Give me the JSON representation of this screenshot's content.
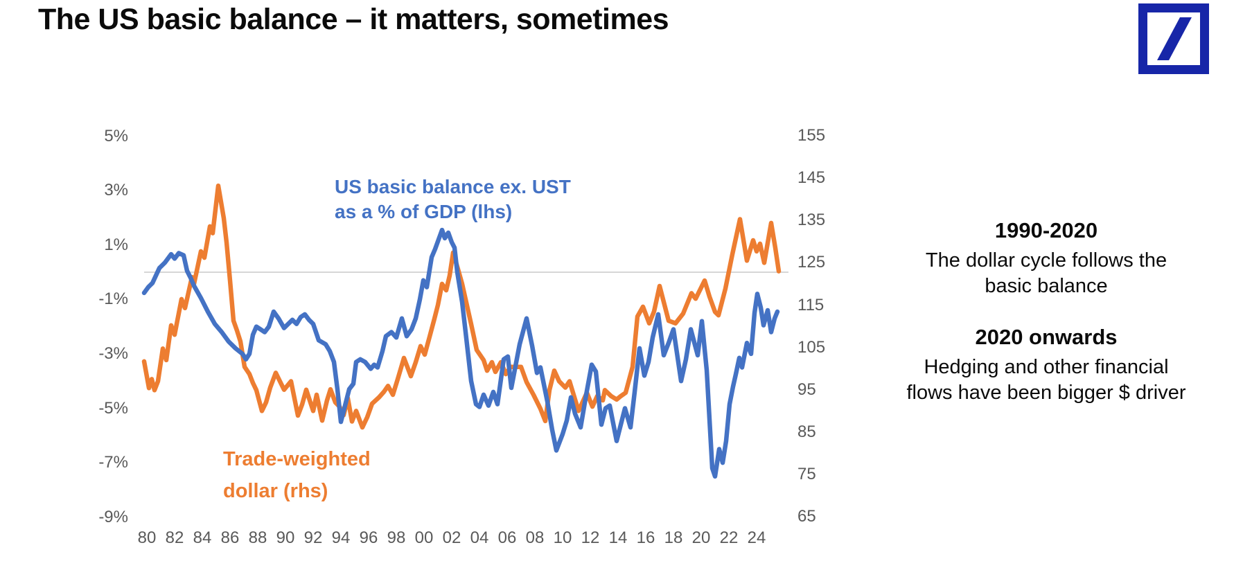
{
  "page": {
    "title": "The US basic balance – it matters, sometimes"
  },
  "logo": {
    "name": "Deutsche Bank",
    "color": "#1726A8"
  },
  "chart": {
    "blue_label_line1": "US basic balance ex. UST",
    "blue_label_line2": "as a % of GDP (lhs)",
    "orange_label_line1": "Trade-weighted",
    "orange_label_line2": "dollar (rhs)",
    "colors": {
      "blue": "#4472C4",
      "orange": "#ED7D31",
      "gridline": "#C9C9C9",
      "axis_text": "#595959"
    }
  },
  "annotations": {
    "block1": {
      "heading": "1990-2020",
      "body": "The dollar cycle follows the\nbasic balance"
    },
    "block2": {
      "heading": "2020 onwards",
      "body": "Hedging and other financial\nflows have been bigger $ driver"
    }
  },
  "chart_data": {
    "type": "line",
    "title": "The US basic balance – it matters, sometimes",
    "grid": "zero line only (left axis 0%)",
    "legend_position": "labels on chart",
    "x_axis": {
      "range": [
        1979.8,
        2025.6
      ],
      "tick_years": [
        1980,
        1982,
        1984,
        1986,
        1988,
        1990,
        1992,
        1994,
        1996,
        1998,
        2000,
        2002,
        2004,
        2006,
        2008,
        2010,
        2012,
        2014,
        2016,
        2018,
        2020,
        2022,
        2024
      ],
      "tick_label_format": "2-digit"
    },
    "left_axis": {
      "label": "US basic balance ex. UST as a % of GDP",
      "range": [
        -9,
        5
      ],
      "ticks": [
        5,
        3,
        1,
        -1,
        -3,
        -5,
        -7,
        -9
      ],
      "format": "percent"
    },
    "right_axis": {
      "label": "Trade-weighted dollar index",
      "range": [
        65,
        155
      ],
      "ticks": [
        155,
        145,
        135,
        125,
        115,
        105,
        95,
        85,
        75,
        65
      ]
    },
    "series": [
      {
        "name": "US basic balance ex. UST as a % of GDP (lhs)",
        "axis": "left",
        "color": "#4472C4",
        "points": [
          [
            1979.8,
            -0.76
          ],
          [
            1980.1,
            -0.55
          ],
          [
            1980.4,
            -0.4
          ],
          [
            1980.9,
            0.15
          ],
          [
            1981.3,
            0.35
          ],
          [
            1981.75,
            0.66
          ],
          [
            1982.0,
            0.5
          ],
          [
            1982.3,
            0.7
          ],
          [
            1982.65,
            0.62
          ],
          [
            1982.9,
            0.05
          ],
          [
            1983.15,
            -0.2
          ],
          [
            1983.4,
            -0.5
          ],
          [
            1983.9,
            -0.95
          ],
          [
            1984.4,
            -1.45
          ],
          [
            1984.9,
            -1.9
          ],
          [
            1985.4,
            -2.2
          ],
          [
            1985.9,
            -2.55
          ],
          [
            1986.4,
            -2.8
          ],
          [
            1986.9,
            -3.0
          ],
          [
            1987.15,
            -3.2
          ],
          [
            1987.4,
            -3.0
          ],
          [
            1987.65,
            -2.3
          ],
          [
            1987.9,
            -2.0
          ],
          [
            1988.2,
            -2.1
          ],
          [
            1988.5,
            -2.2
          ],
          [
            1988.8,
            -2.0
          ],
          [
            1989.15,
            -1.45
          ],
          [
            1989.5,
            -1.7
          ],
          [
            1989.9,
            -2.05
          ],
          [
            1990.2,
            -1.9
          ],
          [
            1990.5,
            -1.75
          ],
          [
            1990.8,
            -1.9
          ],
          [
            1991.1,
            -1.65
          ],
          [
            1991.4,
            -1.55
          ],
          [
            1991.7,
            -1.75
          ],
          [
            1992.0,
            -1.9
          ],
          [
            1992.4,
            -2.5
          ],
          [
            1992.9,
            -2.65
          ],
          [
            1993.2,
            -2.9
          ],
          [
            1993.5,
            -3.3
          ],
          [
            1993.75,
            -4.3
          ],
          [
            1994.0,
            -5.5
          ],
          [
            1994.3,
            -4.9
          ],
          [
            1994.6,
            -4.3
          ],
          [
            1994.9,
            -4.1
          ],
          [
            1995.1,
            -3.3
          ],
          [
            1995.4,
            -3.2
          ],
          [
            1995.75,
            -3.3
          ],
          [
            1996.15,
            -3.55
          ],
          [
            1996.4,
            -3.4
          ],
          [
            1996.65,
            -3.5
          ],
          [
            1997.0,
            -2.9
          ],
          [
            1997.25,
            -2.35
          ],
          [
            1997.65,
            -2.2
          ],
          [
            1998.0,
            -2.4
          ],
          [
            1998.4,
            -1.7
          ],
          [
            1998.75,
            -2.35
          ],
          [
            1999.1,
            -2.1
          ],
          [
            1999.4,
            -1.7
          ],
          [
            1999.7,
            -1.0
          ],
          [
            1999.95,
            -0.3
          ],
          [
            2000.2,
            -0.55
          ],
          [
            2000.55,
            0.55
          ],
          [
            2000.8,
            0.85
          ],
          [
            2001.05,
            1.2
          ],
          [
            2001.3,
            1.55
          ],
          [
            2001.5,
            1.25
          ],
          [
            2001.75,
            1.45
          ],
          [
            2002.0,
            1.1
          ],
          [
            2002.2,
            0.9
          ],
          [
            2002.4,
            0.0
          ],
          [
            2002.75,
            -1.1
          ],
          [
            2003.0,
            -2.2
          ],
          [
            2003.4,
            -4.0
          ],
          [
            2003.75,
            -4.85
          ],
          [
            2004.0,
            -4.95
          ],
          [
            2004.3,
            -4.5
          ],
          [
            2004.65,
            -4.9
          ],
          [
            2005.0,
            -4.4
          ],
          [
            2005.3,
            -4.85
          ],
          [
            2005.75,
            -3.2
          ],
          [
            2006.05,
            -3.1
          ],
          [
            2006.3,
            -4.25
          ],
          [
            2006.9,
            -2.65
          ],
          [
            2007.4,
            -1.7
          ],
          [
            2007.8,
            -2.7
          ],
          [
            2008.15,
            -3.7
          ],
          [
            2008.4,
            -3.5
          ],
          [
            2008.9,
            -4.75
          ],
          [
            2009.25,
            -5.8
          ],
          [
            2009.55,
            -6.55
          ],
          [
            2010.0,
            -5.95
          ],
          [
            2010.3,
            -5.45
          ],
          [
            2010.6,
            -4.6
          ],
          [
            2010.9,
            -5.2
          ],
          [
            2011.3,
            -5.7
          ],
          [
            2011.7,
            -4.5
          ],
          [
            2012.1,
            -3.4
          ],
          [
            2012.4,
            -3.65
          ],
          [
            2012.8,
            -5.6
          ],
          [
            2013.1,
            -5.0
          ],
          [
            2013.4,
            -4.9
          ],
          [
            2013.9,
            -6.2
          ],
          [
            2014.2,
            -5.6
          ],
          [
            2014.5,
            -5.0
          ],
          [
            2014.9,
            -5.7
          ],
          [
            2015.2,
            -4.4
          ],
          [
            2015.55,
            -2.8
          ],
          [
            2015.9,
            -3.8
          ],
          [
            2016.2,
            -3.3
          ],
          [
            2016.5,
            -2.4
          ],
          [
            2016.9,
            -1.55
          ],
          [
            2017.3,
            -3.05
          ],
          [
            2017.65,
            -2.6
          ],
          [
            2018.0,
            -2.1
          ],
          [
            2018.55,
            -4.0
          ],
          [
            2018.9,
            -3.2
          ],
          [
            2019.25,
            -2.1
          ],
          [
            2019.75,
            -3.05
          ],
          [
            2020.05,
            -1.8
          ],
          [
            2020.4,
            -3.6
          ],
          [
            2020.8,
            -7.2
          ],
          [
            2021.0,
            -7.5
          ],
          [
            2021.3,
            -6.5
          ],
          [
            2021.55,
            -7.0
          ],
          [
            2021.8,
            -6.2
          ],
          [
            2022.05,
            -4.85
          ],
          [
            2022.3,
            -4.2
          ],
          [
            2022.5,
            -3.75
          ],
          [
            2022.75,
            -3.15
          ],
          [
            2022.95,
            -3.5
          ],
          [
            2023.3,
            -2.6
          ],
          [
            2023.6,
            -3.0
          ],
          [
            2023.85,
            -1.5
          ],
          [
            2024.05,
            -0.8
          ],
          [
            2024.3,
            -1.3
          ],
          [
            2024.5,
            -1.95
          ],
          [
            2024.8,
            -1.4
          ],
          [
            2025.05,
            -2.2
          ],
          [
            2025.3,
            -1.7
          ],
          [
            2025.5,
            -1.45
          ]
        ]
      },
      {
        "name": "Trade-weighted dollar (rhs)",
        "axis": "right",
        "color": "#ED7D31",
        "points": [
          [
            1979.8,
            101.7
          ],
          [
            1980.15,
            95.4
          ],
          [
            1980.35,
            97.5
          ],
          [
            1980.55,
            94.9
          ],
          [
            1980.8,
            97.0
          ],
          [
            1981.15,
            104.7
          ],
          [
            1981.4,
            102.0
          ],
          [
            1981.75,
            110.2
          ],
          [
            1982.0,
            108.0
          ],
          [
            1982.5,
            116.4
          ],
          [
            1982.75,
            114.3
          ],
          [
            1983.25,
            121.6
          ],
          [
            1983.4,
            120.0
          ],
          [
            1983.9,
            127.7
          ],
          [
            1984.15,
            126.2
          ],
          [
            1984.55,
            133.6
          ],
          [
            1984.75,
            132.0
          ],
          [
            1985.15,
            143.2
          ],
          [
            1985.55,
            135.5
          ],
          [
            1985.75,
            129.8
          ],
          [
            1986.0,
            120.8
          ],
          [
            1986.25,
            111.3
          ],
          [
            1986.5,
            109.0
          ],
          [
            1986.75,
            106.4
          ],
          [
            1987.05,
            100.4
          ],
          [
            1987.4,
            98.7
          ],
          [
            1987.65,
            96.6
          ],
          [
            1987.9,
            94.9
          ],
          [
            1988.3,
            90.0
          ],
          [
            1988.6,
            92.0
          ],
          [
            1988.9,
            95.5
          ],
          [
            1989.3,
            99.0
          ],
          [
            1989.6,
            97.0
          ],
          [
            1989.9,
            95.0
          ],
          [
            1990.4,
            97.0
          ],
          [
            1990.9,
            88.9
          ],
          [
            1991.2,
            91.5
          ],
          [
            1991.5,
            95.0
          ],
          [
            1992.0,
            90.0
          ],
          [
            1992.25,
            93.8
          ],
          [
            1992.65,
            87.7
          ],
          [
            1993.0,
            92.5
          ],
          [
            1993.25,
            95.1
          ],
          [
            1993.6,
            92.0
          ],
          [
            1993.9,
            91.0
          ],
          [
            1994.2,
            89.0
          ],
          [
            1994.5,
            93.0
          ],
          [
            1994.8,
            87.5
          ],
          [
            1995.1,
            90.0
          ],
          [
            1995.55,
            86.1
          ],
          [
            1995.9,
            88.5
          ],
          [
            1996.25,
            91.7
          ],
          [
            1996.75,
            93.2
          ],
          [
            1997.1,
            94.5
          ],
          [
            1997.4,
            95.9
          ],
          [
            1997.75,
            93.8
          ],
          [
            1998.1,
            97.5
          ],
          [
            1998.55,
            102.5
          ],
          [
            1999.05,
            98.2
          ],
          [
            1999.4,
            101.5
          ],
          [
            1999.75,
            105.3
          ],
          [
            2000.05,
            103.3
          ],
          [
            2000.4,
            107.5
          ],
          [
            2000.75,
            111.8
          ],
          [
            2001.0,
            115.0
          ],
          [
            2001.3,
            120.0
          ],
          [
            2001.6,
            118.5
          ],
          [
            2001.85,
            122.0
          ],
          [
            2002.1,
            127.4
          ],
          [
            2002.45,
            123.5
          ],
          [
            2002.75,
            120.0
          ],
          [
            2003.4,
            110.5
          ],
          [
            2003.8,
            104.4
          ],
          [
            2004.3,
            102.0
          ],
          [
            2004.55,
            99.5
          ],
          [
            2004.9,
            101.5
          ],
          [
            2005.15,
            99.2
          ],
          [
            2005.55,
            101.5
          ],
          [
            2005.9,
            98.7
          ],
          [
            2006.25,
            100.4
          ],
          [
            2007.0,
            100.4
          ],
          [
            2007.4,
            96.8
          ],
          [
            2007.9,
            93.8
          ],
          [
            2008.4,
            90.5
          ],
          [
            2008.75,
            87.6
          ],
          [
            2009.05,
            94.9
          ],
          [
            2009.4,
            99.5
          ],
          [
            2009.75,
            97.0
          ],
          [
            2010.2,
            95.5
          ],
          [
            2010.5,
            97.0
          ],
          [
            2011.15,
            90.0
          ],
          [
            2011.75,
            94.3
          ],
          [
            2012.15,
            91.0
          ],
          [
            2012.5,
            93.5
          ],
          [
            2012.9,
            92.5
          ],
          [
            2013.05,
            94.9
          ],
          [
            2013.5,
            93.5
          ],
          [
            2013.9,
            92.7
          ],
          [
            2014.2,
            93.5
          ],
          [
            2014.55,
            94.3
          ],
          [
            2015.05,
            100.4
          ],
          [
            2015.4,
            112.3
          ],
          [
            2015.8,
            114.6
          ],
          [
            2016.25,
            110.7
          ],
          [
            2016.6,
            113.5
          ],
          [
            2017.0,
            119.5
          ],
          [
            2017.65,
            111.3
          ],
          [
            2018.15,
            110.7
          ],
          [
            2018.7,
            113.0
          ],
          [
            2019.3,
            117.8
          ],
          [
            2019.6,
            116.5
          ],
          [
            2020.25,
            120.8
          ],
          [
            2020.6,
            117.0
          ],
          [
            2021.0,
            113.4
          ],
          [
            2021.25,
            112.6
          ],
          [
            2021.75,
            118.9
          ],
          [
            2022.25,
            127.0
          ],
          [
            2022.8,
            135.3
          ],
          [
            2023.3,
            125.5
          ],
          [
            2023.75,
            130.3
          ],
          [
            2024.0,
            127.7
          ],
          [
            2024.25,
            129.5
          ],
          [
            2024.55,
            125.0
          ],
          [
            2025.05,
            134.4
          ],
          [
            2025.35,
            128.5
          ],
          [
            2025.6,
            123.0
          ]
        ]
      }
    ]
  }
}
